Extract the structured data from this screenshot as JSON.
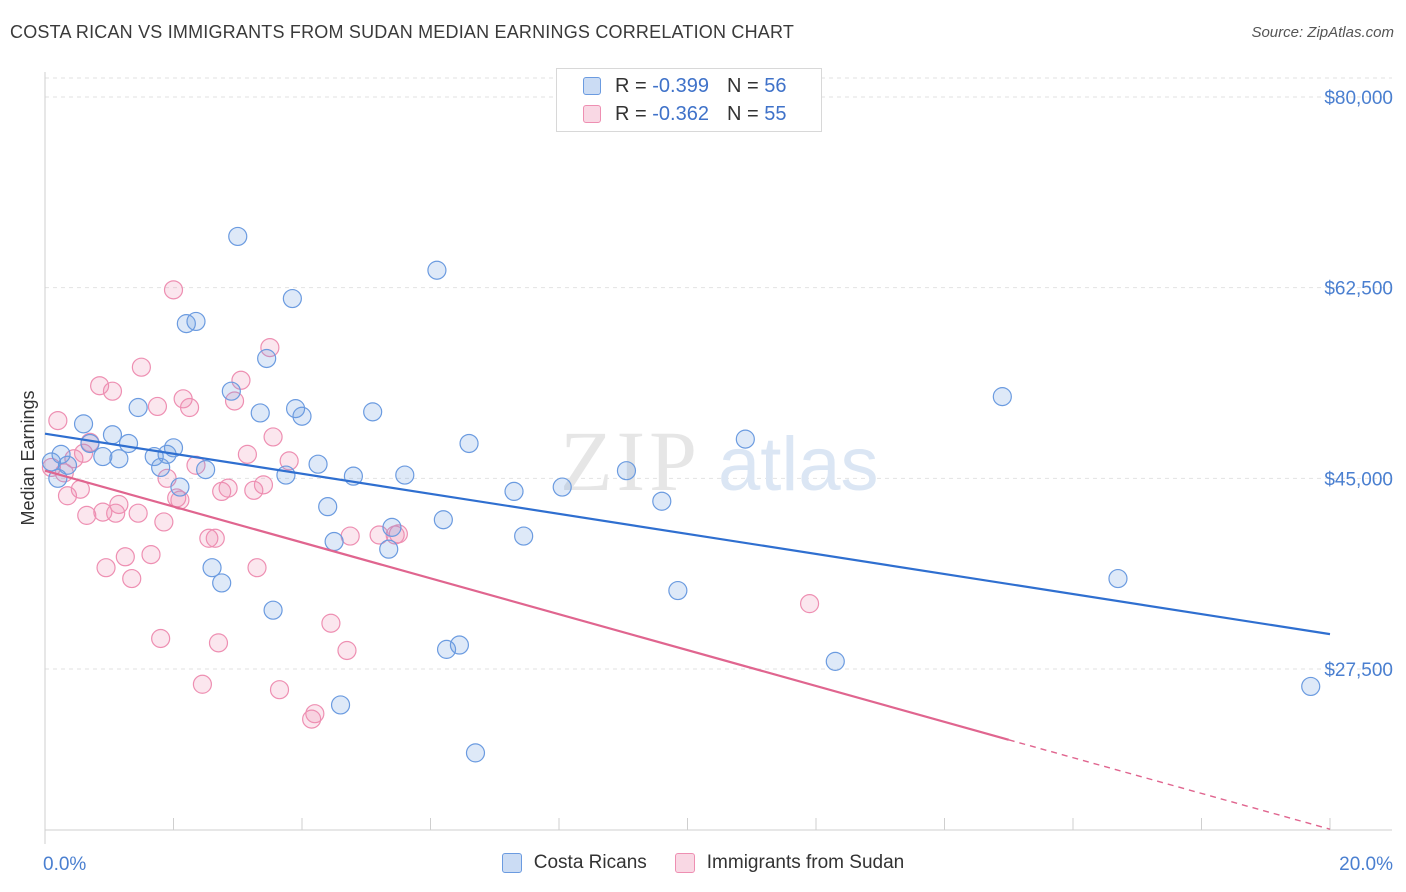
{
  "title": "COSTA RICAN VS IMMIGRANTS FROM SUDAN MEDIAN EARNINGS CORRELATION CHART",
  "source": "Source: ZipAtlas.com",
  "watermark": {
    "zip": "ZIP",
    "atlas": "atlas"
  },
  "legend": {
    "r_label": "R =",
    "n_label": "N =",
    "rows": [
      {
        "r": "-0.399",
        "n": "56",
        "color": "#6b9be0"
      },
      {
        "r": "-0.362",
        "n": "55",
        "color": "#ee8fb2"
      }
    ]
  },
  "bottom_legend": [
    {
      "label": "Costa Ricans",
      "color": "#6b9be0"
    },
    {
      "label": "Immigrants from Sudan",
      "color": "#ee8fb2"
    }
  ],
  "chart_data": {
    "type": "scatter",
    "ylabel": "Median Earnings",
    "xlim": [
      0,
      20
    ],
    "ylim": [
      10000,
      82000
    ],
    "x_tick_labels": [
      "0.0%",
      "20.0%"
    ],
    "y_ticks": [
      {
        "value": 80000,
        "label": "$80,000"
      },
      {
        "value": 62500,
        "label": "$62,500"
      },
      {
        "value": 45000,
        "label": "$45,000"
      },
      {
        "value": 27500,
        "label": "$27,500"
      }
    ],
    "grid": true,
    "series": [
      {
        "name": "Costa Ricans",
        "color": "#6b9be0",
        "points": [
          [
            0.1,
            46500
          ],
          [
            0.2,
            45000
          ],
          [
            0.25,
            47200
          ],
          [
            0.35,
            46200
          ],
          [
            0.6,
            50000
          ],
          [
            0.7,
            48200
          ],
          [
            0.9,
            47000
          ],
          [
            1.05,
            49000
          ],
          [
            1.15,
            46800
          ],
          [
            1.3,
            48200
          ],
          [
            1.45,
            51500
          ],
          [
            1.7,
            47000
          ],
          [
            1.8,
            46000
          ],
          [
            1.9,
            47200
          ],
          [
            2.0,
            47800
          ],
          [
            2.1,
            44200
          ],
          [
            2.2,
            59200
          ],
          [
            2.35,
            59400
          ],
          [
            2.5,
            45800
          ],
          [
            2.6,
            36800
          ],
          [
            2.75,
            35400
          ],
          [
            2.9,
            53000
          ],
          [
            3.0,
            67200
          ],
          [
            3.35,
            51000
          ],
          [
            3.45,
            56000
          ],
          [
            3.55,
            32900
          ],
          [
            3.75,
            45300
          ],
          [
            3.85,
            61500
          ],
          [
            3.9,
            51400
          ],
          [
            4.0,
            50700
          ],
          [
            4.25,
            46300
          ],
          [
            4.4,
            42400
          ],
          [
            4.5,
            39200
          ],
          [
            4.6,
            24200
          ],
          [
            4.8,
            45200
          ],
          [
            5.1,
            51100
          ],
          [
            5.35,
            38500
          ],
          [
            5.4,
            40500
          ],
          [
            5.6,
            45300
          ],
          [
            6.1,
            64100
          ],
          [
            6.2,
            41200
          ],
          [
            6.25,
            29300
          ],
          [
            6.45,
            29700
          ],
          [
            6.6,
            48200
          ],
          [
            6.7,
            19800
          ],
          [
            7.3,
            43800
          ],
          [
            7.45,
            39700
          ],
          [
            8.05,
            44200
          ],
          [
            9.05,
            45700
          ],
          [
            9.6,
            42900
          ],
          [
            9.85,
            34700
          ],
          [
            10.9,
            48600
          ],
          [
            12.3,
            28200
          ],
          [
            14.9,
            52500
          ],
          [
            16.7,
            35800
          ],
          [
            19.7,
            25900
          ]
        ]
      },
      {
        "name": "Immigrants from Sudan",
        "color": "#ee8fb2",
        "points": [
          [
            0.1,
            46000
          ],
          [
            0.2,
            50300
          ],
          [
            0.3,
            45500
          ],
          [
            0.35,
            43400
          ],
          [
            0.45,
            46800
          ],
          [
            0.55,
            44000
          ],
          [
            0.6,
            47300
          ],
          [
            0.65,
            41600
          ],
          [
            0.7,
            48300
          ],
          [
            0.85,
            53500
          ],
          [
            0.9,
            41900
          ],
          [
            0.95,
            36800
          ],
          [
            1.05,
            53000
          ],
          [
            1.1,
            41800
          ],
          [
            1.15,
            42600
          ],
          [
            1.25,
            37800
          ],
          [
            1.35,
            35800
          ],
          [
            1.45,
            41800
          ],
          [
            1.5,
            55200
          ],
          [
            1.65,
            38000
          ],
          [
            1.75,
            51600
          ],
          [
            1.8,
            30300
          ],
          [
            1.85,
            41000
          ],
          [
            1.9,
            45000
          ],
          [
            2.0,
            62300
          ],
          [
            2.05,
            43200
          ],
          [
            2.1,
            43000
          ],
          [
            2.15,
            52300
          ],
          [
            2.25,
            51500
          ],
          [
            2.35,
            46200
          ],
          [
            2.45,
            26100
          ],
          [
            2.55,
            39500
          ],
          [
            2.65,
            39500
          ],
          [
            2.7,
            29900
          ],
          [
            2.75,
            43800
          ],
          [
            2.85,
            44100
          ],
          [
            2.95,
            52100
          ],
          [
            3.05,
            54000
          ],
          [
            3.15,
            47200
          ],
          [
            3.25,
            43900
          ],
          [
            3.3,
            36800
          ],
          [
            3.4,
            44400
          ],
          [
            3.5,
            57000
          ],
          [
            3.55,
            48800
          ],
          [
            3.65,
            25600
          ],
          [
            3.8,
            46600
          ],
          [
            4.15,
            22900
          ],
          [
            4.2,
            23400
          ],
          [
            4.45,
            31700
          ],
          [
            4.7,
            29200
          ],
          [
            4.75,
            39700
          ],
          [
            5.2,
            39800
          ],
          [
            5.45,
            39800
          ],
          [
            5.5,
            39900
          ],
          [
            11.9,
            33500
          ]
        ]
      }
    ],
    "trend_lines": [
      {
        "series": "Costa Ricans",
        "color": "#2f6fd0",
        "from": [
          0,
          49100
        ],
        "to": [
          20,
          30700
        ]
      },
      {
        "series": "Immigrants from Sudan",
        "color": "#e0658f",
        "from": [
          0,
          45700
        ],
        "to": [
          15,
          21000
        ],
        "dashed_to": [
          20,
          12800
        ]
      }
    ]
  }
}
